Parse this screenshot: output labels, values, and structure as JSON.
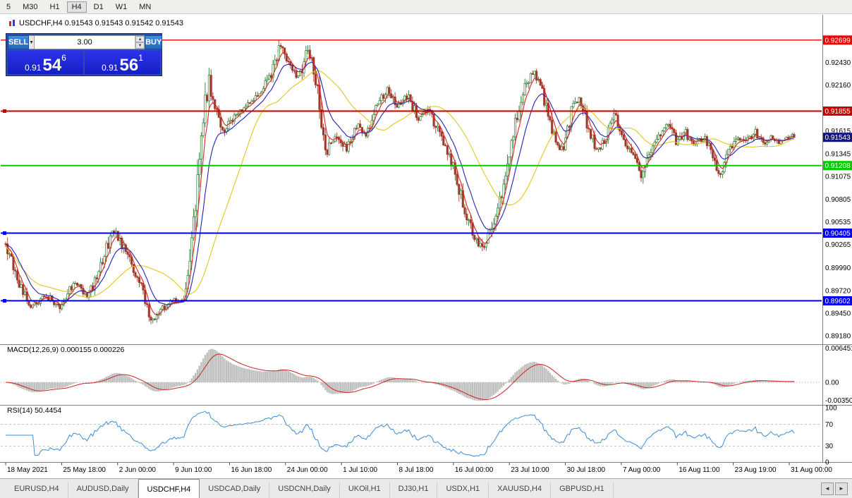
{
  "colors": {
    "bull": "#2E7D32",
    "bear": "#9E3B2B",
    "ma_fast": "#DD2222",
    "ma_mid": "#2222BB",
    "ma_slow": "#E3C818",
    "macd_hist": "#BFBFBF",
    "macd_signal": "#CC2222",
    "rsi_line": "#3A8BD8",
    "badge_current": "#14147D"
  },
  "toolbar": {
    "timeframes": [
      "5",
      "M30",
      "H1",
      "H4",
      "D1",
      "W1",
      "MN"
    ],
    "active": "H4"
  },
  "chart": {
    "title": "USDCHF,H4 0.91543 0.91543 0.91542 0.91543"
  },
  "trade_panel": {
    "sell_label": "SELL",
    "buy_label": "BUY",
    "lot": "3.00",
    "sell_price": {
      "prefix": "0.91",
      "main": "54",
      "sup": "6"
    },
    "buy_price": {
      "prefix": "0.91",
      "main": "56",
      "sup": "1"
    }
  },
  "price_axis": {
    "labels": [
      "0.92430",
      "0.92160",
      "0.91615",
      "0.91345",
      "0.91075",
      "0.90805",
      "0.90535",
      "0.90265",
      "0.89990",
      "0.89720",
      "0.89450",
      "0.89180"
    ],
    "current_label": "0.91543"
  },
  "indicators": {
    "macd": {
      "label": "MACD(12,26,9) 0.000155 0.000226",
      "axis": [
        "0.006451",
        "0.00",
        "-0.00350"
      ]
    },
    "rsi": {
      "label": "RSI(14) 50.4454",
      "axis": [
        "100",
        "70",
        "30",
        "0"
      ]
    }
  },
  "time_axis": [
    "18 May 2021",
    "25 May 18:00",
    "2 Jun 00:00",
    "9 Jun 10:00",
    "16 Jun 18:00",
    "24 Jun 00:00",
    "1 Jul 10:00",
    "8 Jul 18:00",
    "16 Jul 00:00",
    "23 Jul 10:00",
    "30 Jul 18:00",
    "7 Aug 00:00",
    "16 Aug 11:00",
    "23 Aug 19:00",
    "31 Aug 00:00"
  ],
  "tabs": {
    "items": [
      "EURUSD,H4",
      "AUDUSD,Daily",
      "USDCHF,H4",
      "USDCAD,Daily",
      "USDCNH,Daily",
      "UKOil,H1",
      "DJ30,H1",
      "USDX,H1",
      "XAUUSD,H4",
      "GBPUSD,H1"
    ],
    "active": "USDCHF,H4",
    "scroll_left": "◄",
    "scroll_right": "►"
  },
  "chart_data": {
    "type": "candlestick",
    "symbol": "USDCHF",
    "timeframe": "H4",
    "current_price": 0.91543,
    "price_range_visible": [
      0.8918,
      0.927
    ],
    "horizontal_lines": [
      {
        "price": 0.92699,
        "label": "0.92699",
        "color": "#EE0000",
        "width": 1.4,
        "handle": false
      },
      {
        "price": 0.91855,
        "label": "0.91855",
        "color": "#C80000",
        "width": 2,
        "handle": true
      },
      {
        "price": 0.91208,
        "label": "0.91208",
        "color": "#00CC00",
        "width": 2,
        "handle": false
      },
      {
        "price": 0.90405,
        "label": "0.90405",
        "color": "#0000EE",
        "width": 2,
        "handle": true
      },
      {
        "price": 0.89602,
        "label": "0.89602",
        "color": "#0000EE",
        "width": 2,
        "handle": true
      }
    ],
    "moving_averages": [
      {
        "name": "fast",
        "period": 5,
        "color": "#DD2222"
      },
      {
        "name": "mid",
        "period": 13,
        "color": "#2222BB"
      },
      {
        "name": "slow",
        "period": 34,
        "color": "#E3C818"
      }
    ],
    "macd": {
      "fast": 12,
      "slow": 26,
      "signal": 9,
      "current_main": 0.000155,
      "current_signal": 0.000226
    },
    "rsi": {
      "period": 14,
      "current": 50.4454,
      "levels": [
        70,
        30
      ]
    },
    "price_waypoints": [
      [
        8,
        0.9028
      ],
      [
        25,
        0.8982
      ],
      [
        45,
        0.8953
      ],
      [
        65,
        0.8967
      ],
      [
        85,
        0.8953
      ],
      [
        105,
        0.8984
      ],
      [
        125,
        0.8965
      ],
      [
        145,
        0.9005
      ],
      [
        160,
        0.9047
      ],
      [
        180,
        0.9014
      ],
      [
        200,
        0.8977
      ],
      [
        213,
        0.8933
      ],
      [
        228,
        0.895
      ],
      [
        245,
        0.8961
      ],
      [
        258,
        0.8955
      ],
      [
        268,
        0.8999
      ],
      [
        278,
        0.9074
      ],
      [
        288,
        0.917
      ],
      [
        296,
        0.9225
      ],
      [
        305,
        0.9187
      ],
      [
        316,
        0.9159
      ],
      [
        330,
        0.9176
      ],
      [
        344,
        0.9189
      ],
      [
        358,
        0.9198
      ],
      [
        372,
        0.9214
      ],
      [
        386,
        0.9232
      ],
      [
        399,
        0.9268
      ],
      [
        410,
        0.924
      ],
      [
        424,
        0.9223
      ],
      [
        437,
        0.9261
      ],
      [
        450,
        0.921
      ],
      [
        463,
        0.9136
      ],
      [
        477,
        0.9161
      ],
      [
        491,
        0.9139
      ],
      [
        505,
        0.9169
      ],
      [
        519,
        0.9156
      ],
      [
        534,
        0.9191
      ],
      [
        549,
        0.9214
      ],
      [
        563,
        0.9191
      ],
      [
        578,
        0.9203
      ],
      [
        593,
        0.9178
      ],
      [
        608,
        0.9189
      ],
      [
        621,
        0.9161
      ],
      [
        634,
        0.9139
      ],
      [
        647,
        0.9106
      ],
      [
        659,
        0.9069
      ],
      [
        671,
        0.9039
      ],
      [
        684,
        0.9022
      ],
      [
        694,
        0.9041
      ],
      [
        705,
        0.9067
      ],
      [
        717,
        0.9109
      ],
      [
        729,
        0.9164
      ],
      [
        741,
        0.9208
      ],
      [
        754,
        0.9233
      ],
      [
        764,
        0.9223
      ],
      [
        775,
        0.9189
      ],
      [
        787,
        0.9149
      ],
      [
        799,
        0.9139
      ],
      [
        811,
        0.9189
      ],
      [
        821,
        0.9203
      ],
      [
        834,
        0.9164
      ],
      [
        847,
        0.9139
      ],
      [
        859,
        0.9152
      ],
      [
        871,
        0.918
      ],
      [
        884,
        0.9152
      ],
      [
        897,
        0.9136
      ],
      [
        909,
        0.9106
      ],
      [
        921,
        0.9136
      ],
      [
        934,
        0.9156
      ],
      [
        947,
        0.9172
      ],
      [
        959,
        0.9147
      ],
      [
        971,
        0.9161
      ],
      [
        984,
        0.9144
      ],
      [
        997,
        0.9156
      ],
      [
        1009,
        0.9136
      ],
      [
        1021,
        0.9111
      ],
      [
        1034,
        0.9139
      ],
      [
        1046,
        0.9156
      ],
      [
        1058,
        0.9147
      ],
      [
        1070,
        0.9161
      ],
      [
        1082,
        0.9147
      ],
      [
        1094,
        0.9156
      ],
      [
        1106,
        0.9147
      ],
      [
        1118,
        0.9156
      ],
      [
        1128,
        0.91543
      ]
    ]
  }
}
